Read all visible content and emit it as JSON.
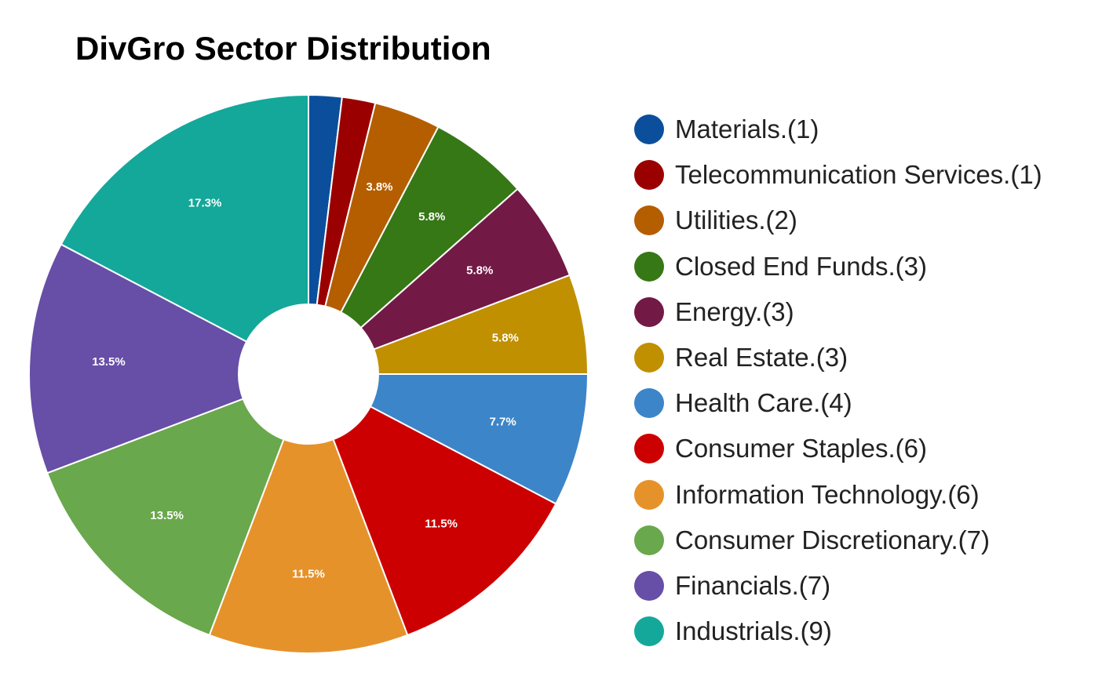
{
  "chart_data": {
    "type": "pie",
    "title": "DivGro Sector Distribution",
    "donut": true,
    "legend_position": "right",
    "slices": [
      {
        "name": "Materials",
        "legend_label": "Materials.(1)",
        "count": 1,
        "percent": 1.9,
        "percent_label": "",
        "color": "#0b4f9c"
      },
      {
        "name": "Telecommunication Services",
        "legend_label": "Telecommunication Services.(1)",
        "count": 1,
        "percent": 1.9,
        "percent_label": "",
        "color": "#9b0000"
      },
      {
        "name": "Utilities",
        "legend_label": "Utilities.(2)",
        "count": 2,
        "percent": 3.8,
        "percent_label": "3.8%",
        "color": "#b45e00"
      },
      {
        "name": "Closed End Funds",
        "legend_label": "Closed End Funds.(3)",
        "count": 3,
        "percent": 5.8,
        "percent_label": "5.8%",
        "color": "#367716"
      },
      {
        "name": "Energy",
        "legend_label": "Energy.(3)",
        "count": 3,
        "percent": 5.8,
        "percent_label": "5.8%",
        "color": "#731946"
      },
      {
        "name": "Real Estate",
        "legend_label": "Real Estate.(3)",
        "count": 3,
        "percent": 5.8,
        "percent_label": "5.8%",
        "color": "#c09000"
      },
      {
        "name": "Health Care",
        "legend_label": "Health Care.(4)",
        "count": 4,
        "percent": 7.7,
        "percent_label": "7.7%",
        "color": "#3c85c8"
      },
      {
        "name": "Consumer Staples",
        "legend_label": "Consumer Staples.(6)",
        "count": 6,
        "percent": 11.5,
        "percent_label": "11.5%",
        "color": "#cc0000"
      },
      {
        "name": "Information Technology",
        "legend_label": "Information Technology.(6)",
        "count": 6,
        "percent": 11.5,
        "percent_label": "11.5%",
        "color": "#e6922b"
      },
      {
        "name": "Consumer Discretionary",
        "legend_label": "Consumer Discretionary.(7)",
        "count": 7,
        "percent": 13.5,
        "percent_label": "13.5%",
        "color": "#69a84c"
      },
      {
        "name": "Financials",
        "legend_label": "Financials.(7)",
        "count": 7,
        "percent": 13.5,
        "percent_label": "13.5%",
        "color": "#674ea7"
      },
      {
        "name": "Industrials",
        "legend_label": "Industrials.(9)",
        "count": 9,
        "percent": 17.3,
        "percent_label": "17.3%",
        "color": "#13a89a"
      }
    ]
  }
}
